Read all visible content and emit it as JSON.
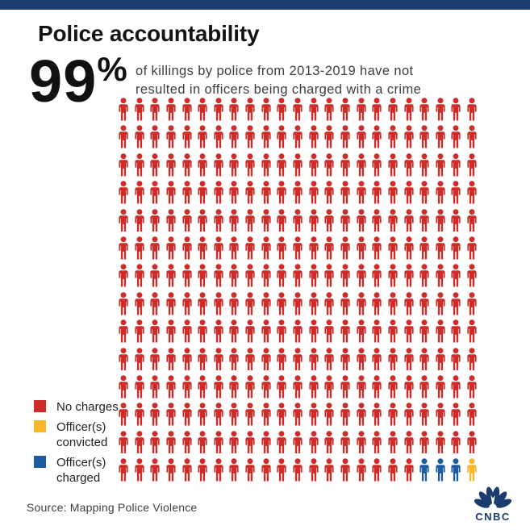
{
  "title": "Police accountability",
  "stat": {
    "value": "99",
    "percent_sign": "%",
    "line1": "of killings by police from 2013-2019 have not",
    "line2": "resulted in officers being charged with a crime"
  },
  "chart_data": {
    "type": "pictogram",
    "unit": "person-icon",
    "rows": 14,
    "cols": 23,
    "total_icons": 322,
    "default_category": "no_charges",
    "exceptions": [
      {
        "row": 13,
        "col": 19,
        "category": "officers_charged"
      },
      {
        "row": 13,
        "col": 20,
        "category": "officers_charged"
      },
      {
        "row": 13,
        "col": 21,
        "category": "officers_charged"
      },
      {
        "row": 13,
        "col": 22,
        "category": "officers_convicted"
      }
    ],
    "categories": {
      "no_charges": {
        "label": "No charges",
        "color": "#cf2b28",
        "count": 318
      },
      "officers_convicted": {
        "label": "Officer(s) convicted",
        "color": "#f8b629",
        "count": 1
      },
      "officers_charged": {
        "label": "Officer(s) charged",
        "color": "#1d5c9e",
        "count": 3
      }
    },
    "title": "Police accountability",
    "annotation": "99% of killings by police from 2013-2019 have not resulted in officers being charged with a crime",
    "legend_position": "bottom-left",
    "grid": "off"
  },
  "legend": {
    "items": [
      {
        "label": "No charges",
        "color": "#cf2b28"
      },
      {
        "label": "Officer(s) convicted",
        "color": "#f8b629"
      },
      {
        "label": "Officer(s) charged",
        "color": "#1d5c9e"
      }
    ]
  },
  "source": "Source: Mapping Police Violence",
  "logo": {
    "text": "CNBC"
  },
  "colors": {
    "accent_bar": "#1b3c6e",
    "logo_navy": "#1b3c6e",
    "background": "#ffffff"
  }
}
